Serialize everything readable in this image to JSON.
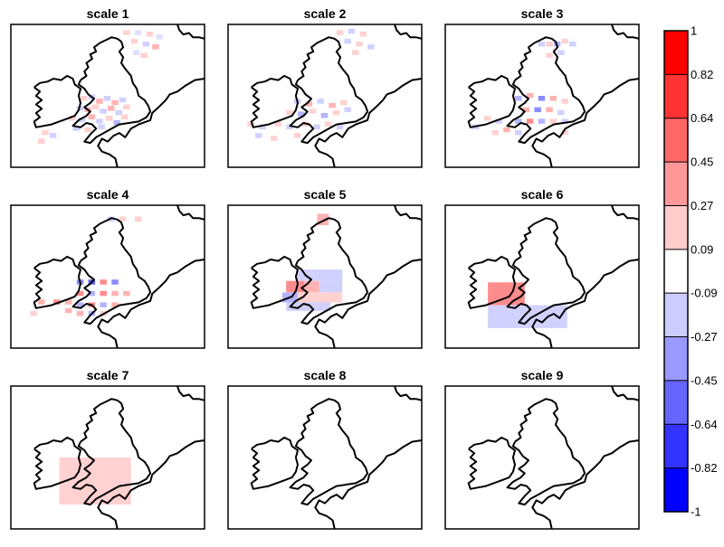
{
  "chart_data": {
    "type": "heatmap",
    "description_free": true,
    "panels": [
      {
        "title": "scale 1",
        "cells": [
          [
            0.58,
            0.04,
            0.18,
            "r"
          ],
          [
            0.64,
            0.04,
            0.12,
            "b"
          ],
          [
            0.7,
            0.05,
            0.18,
            "r"
          ],
          [
            0.75,
            0.07,
            0.12,
            "b"
          ],
          [
            0.62,
            0.1,
            0.18,
            "r"
          ],
          [
            0.68,
            0.12,
            0.18,
            "b"
          ],
          [
            0.73,
            0.14,
            0.3,
            "r"
          ],
          [
            0.63,
            0.18,
            0.12,
            "b"
          ],
          [
            0.67,
            0.2,
            0.18,
            "r"
          ],
          [
            0.36,
            0.5,
            0.18,
            "r"
          ],
          [
            0.4,
            0.49,
            0.18,
            "b"
          ],
          [
            0.44,
            0.52,
            0.3,
            "r"
          ],
          [
            0.48,
            0.5,
            0.18,
            "b"
          ],
          [
            0.52,
            0.53,
            0.3,
            "r"
          ],
          [
            0.56,
            0.51,
            0.18,
            "b"
          ],
          [
            0.34,
            0.57,
            0.18,
            "b"
          ],
          [
            0.38,
            0.58,
            0.3,
            "r"
          ],
          [
            0.42,
            0.56,
            0.18,
            "r"
          ],
          [
            0.46,
            0.59,
            0.18,
            "b"
          ],
          [
            0.5,
            0.57,
            0.3,
            "r"
          ],
          [
            0.54,
            0.6,
            0.18,
            "b"
          ],
          [
            0.58,
            0.56,
            0.18,
            "r"
          ],
          [
            0.3,
            0.64,
            0.18,
            "r"
          ],
          [
            0.35,
            0.65,
            0.18,
            "b"
          ],
          [
            0.4,
            0.63,
            0.3,
            "r"
          ],
          [
            0.44,
            0.66,
            0.18,
            "b"
          ],
          [
            0.49,
            0.64,
            0.18,
            "r"
          ],
          [
            0.53,
            0.67,
            0.3,
            "b"
          ],
          [
            0.57,
            0.63,
            0.18,
            "r"
          ],
          [
            0.32,
            0.71,
            0.18,
            "b"
          ],
          [
            0.38,
            0.72,
            0.18,
            "r"
          ],
          [
            0.45,
            0.7,
            0.18,
            "b"
          ],
          [
            0.16,
            0.74,
            0.18,
            "r"
          ],
          [
            0.2,
            0.76,
            0.18,
            "b"
          ],
          [
            0.14,
            0.8,
            0.18,
            "r"
          ]
        ]
      },
      {
        "title": "scale 2",
        "cells": [
          [
            0.56,
            0.04,
            0.18,
            "r"
          ],
          [
            0.62,
            0.03,
            0.18,
            "b"
          ],
          [
            0.68,
            0.05,
            0.18,
            "r"
          ],
          [
            0.6,
            0.1,
            0.18,
            "b"
          ],
          [
            0.66,
            0.12,
            0.18,
            "r"
          ],
          [
            0.72,
            0.14,
            0.18,
            "b"
          ],
          [
            0.64,
            0.18,
            0.18,
            "r"
          ],
          [
            0.34,
            0.52,
            0.18,
            "b"
          ],
          [
            0.4,
            0.54,
            0.3,
            "r"
          ],
          [
            0.46,
            0.52,
            0.18,
            "b"
          ],
          [
            0.52,
            0.55,
            0.3,
            "r"
          ],
          [
            0.58,
            0.53,
            0.18,
            "r"
          ],
          [
            0.3,
            0.6,
            0.18,
            "r"
          ],
          [
            0.36,
            0.61,
            0.3,
            "b"
          ],
          [
            0.42,
            0.59,
            0.18,
            "r"
          ],
          [
            0.48,
            0.62,
            0.3,
            "b"
          ],
          [
            0.54,
            0.6,
            0.18,
            "r"
          ],
          [
            0.6,
            0.58,
            0.18,
            "b"
          ],
          [
            0.1,
            0.68,
            0.18,
            "r"
          ],
          [
            0.16,
            0.7,
            0.18,
            "b"
          ],
          [
            0.24,
            0.68,
            0.18,
            "r"
          ],
          [
            0.3,
            0.7,
            0.18,
            "b"
          ],
          [
            0.38,
            0.68,
            0.18,
            "r"
          ],
          [
            0.44,
            0.7,
            0.18,
            "b"
          ],
          [
            0.5,
            0.68,
            0.18,
            "r"
          ],
          [
            0.56,
            0.7,
            0.18,
            "b"
          ],
          [
            0.14,
            0.76,
            0.18,
            "b"
          ],
          [
            0.22,
            0.78,
            0.18,
            "r"
          ],
          [
            0.34,
            0.76,
            0.18,
            "r"
          ]
        ]
      },
      {
        "title": "scale 3",
        "cells": [
          [
            0.48,
            0.12,
            0.18,
            "b"
          ],
          [
            0.52,
            0.12,
            0.18,
            "r"
          ],
          [
            0.56,
            0.12,
            0.3,
            "b"
          ],
          [
            0.6,
            0.1,
            0.18,
            "r"
          ],
          [
            0.64,
            0.12,
            0.18,
            "b"
          ],
          [
            0.52,
            0.2,
            0.18,
            "r"
          ],
          [
            0.58,
            0.18,
            0.18,
            "b"
          ],
          [
            0.36,
            0.5,
            0.3,
            "b"
          ],
          [
            0.42,
            0.48,
            0.3,
            "r"
          ],
          [
            0.48,
            0.5,
            0.45,
            "b"
          ],
          [
            0.54,
            0.5,
            0.3,
            "r"
          ],
          [
            0.6,
            0.52,
            0.18,
            "r"
          ],
          [
            0.4,
            0.58,
            0.3,
            "r"
          ],
          [
            0.46,
            0.58,
            0.45,
            "b"
          ],
          [
            0.52,
            0.58,
            0.3,
            "r"
          ],
          [
            0.58,
            0.6,
            0.18,
            "b"
          ],
          [
            0.36,
            0.66,
            0.3,
            "b"
          ],
          [
            0.42,
            0.66,
            0.45,
            "r"
          ],
          [
            0.48,
            0.66,
            0.3,
            "b"
          ],
          [
            0.54,
            0.66,
            0.18,
            "r"
          ],
          [
            0.6,
            0.66,
            0.18,
            "b"
          ],
          [
            0.2,
            0.64,
            0.18,
            "r"
          ],
          [
            0.26,
            0.66,
            0.18,
            "b"
          ],
          [
            0.3,
            0.72,
            0.3,
            "r"
          ],
          [
            0.24,
            0.74,
            0.18,
            "r"
          ],
          [
            0.14,
            0.7,
            0.18,
            "b"
          ],
          [
            0.36,
            0.74,
            0.18,
            "b"
          ],
          [
            0.6,
            0.74,
            0.18,
            "r"
          ]
        ]
      },
      {
        "title": "scale 4",
        "cells": [
          [
            0.5,
            0.08,
            0.18,
            "b"
          ],
          [
            0.56,
            0.08,
            0.18,
            "r"
          ],
          [
            0.64,
            0.08,
            0.18,
            "r"
          ],
          [
            0.34,
            0.52,
            0.45,
            "b"
          ],
          [
            0.4,
            0.52,
            0.64,
            "b"
          ],
          [
            0.46,
            0.52,
            0.45,
            "r"
          ],
          [
            0.52,
            0.52,
            0.45,
            "b"
          ],
          [
            0.34,
            0.6,
            0.45,
            "r"
          ],
          [
            0.4,
            0.6,
            0.3,
            "b"
          ],
          [
            0.46,
            0.6,
            0.45,
            "r"
          ],
          [
            0.52,
            0.6,
            0.3,
            "r"
          ],
          [
            0.58,
            0.6,
            0.3,
            "r"
          ],
          [
            0.22,
            0.66,
            0.45,
            "r"
          ],
          [
            0.28,
            0.66,
            0.3,
            "r"
          ],
          [
            0.34,
            0.68,
            0.3,
            "b"
          ],
          [
            0.4,
            0.68,
            0.45,
            "r"
          ],
          [
            0.46,
            0.68,
            0.3,
            "b"
          ],
          [
            0.52,
            0.68,
            0.3,
            "r"
          ],
          [
            0.28,
            0.72,
            0.3,
            "r"
          ],
          [
            0.34,
            0.74,
            0.3,
            "r"
          ],
          [
            0.4,
            0.74,
            0.3,
            "b"
          ],
          [
            0.46,
            0.74,
            0.18,
            "r"
          ],
          [
            0.14,
            0.66,
            0.3,
            "r"
          ],
          [
            0.1,
            0.74,
            0.18,
            "r"
          ]
        ]
      },
      {
        "title": "scale 5",
        "rects": [
          [
            0.46,
            0.06,
            0.06,
            0.08,
            0.3,
            "r"
          ],
          [
            0.35,
            0.45,
            0.24,
            0.08,
            0.18,
            "b"
          ],
          [
            0.3,
            0.53,
            0.09,
            0.08,
            0.45,
            "r"
          ],
          [
            0.39,
            0.53,
            0.08,
            0.08,
            0.3,
            "r"
          ],
          [
            0.47,
            0.53,
            0.12,
            0.08,
            0.18,
            "b"
          ],
          [
            0.28,
            0.61,
            0.08,
            0.07,
            0.3,
            "b"
          ],
          [
            0.36,
            0.61,
            0.23,
            0.07,
            0.18,
            "r"
          ],
          [
            0.3,
            0.68,
            0.16,
            0.06,
            0.18,
            "b"
          ],
          [
            0.46,
            0.68,
            0.07,
            0.06,
            0.18,
            "b"
          ]
        ]
      },
      {
        "title": "scale 6",
        "rects": [
          [
            0.22,
            0.54,
            0.19,
            0.16,
            0.45,
            "r"
          ],
          [
            0.22,
            0.7,
            0.41,
            0.16,
            0.18,
            "b"
          ]
        ]
      },
      {
        "title": "scale 7",
        "rects": [
          [
            0.25,
            0.5,
            0.37,
            0.33,
            0.18,
            "r"
          ]
        ]
      },
      {
        "title": "scale 8",
        "rects": []
      },
      {
        "title": "scale 9",
        "rects": []
      }
    ],
    "colorbar": {
      "ticks": [
        "1",
        "0.82",
        "0.64",
        "0.45",
        "0.27",
        "0.09",
        "-0.09",
        "-0.27",
        "-0.45",
        "-0.64",
        "-0.82",
        "-1"
      ],
      "colors": [
        "#ff0000",
        "#ff3333",
        "#ff6666",
        "#ff9999",
        "#ffcccc",
        "#ffffff",
        "#ccccff",
        "#9999ff",
        "#6666ff",
        "#3333ff",
        "#0000ff"
      ],
      "range": [
        -1,
        1
      ]
    }
  }
}
